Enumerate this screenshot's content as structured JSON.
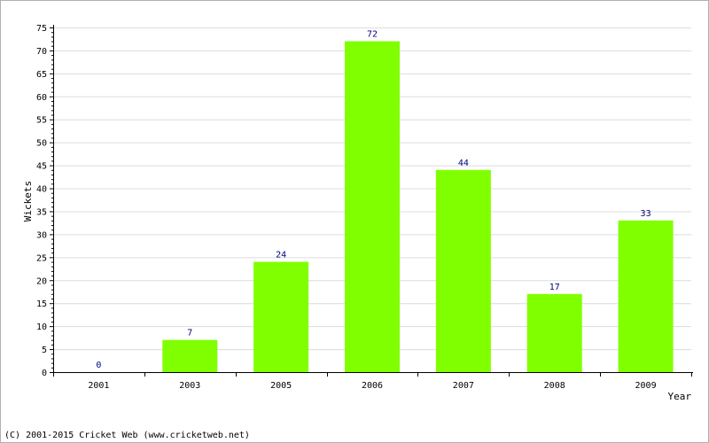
{
  "chart_data": {
    "type": "bar",
    "categories": [
      "2001",
      "2003",
      "2005",
      "2006",
      "2007",
      "2008",
      "2009"
    ],
    "values": [
      0,
      7,
      24,
      72,
      44,
      17,
      33
    ],
    "data_labels": [
      "0",
      "7",
      "24",
      "72",
      "44",
      "17",
      "33"
    ],
    "title": "",
    "xlabel": "Year",
    "ylabel": "Wickets",
    "ylim": [
      0,
      75
    ],
    "yticks": [
      0,
      5,
      10,
      15,
      20,
      25,
      30,
      35,
      40,
      45,
      50,
      55,
      60,
      65,
      70,
      75
    ],
    "grid": true,
    "bar_color": "#80ff00",
    "label_color": "#000080"
  },
  "footer": "(C) 2001-2015 Cricket Web (www.cricketweb.net)"
}
